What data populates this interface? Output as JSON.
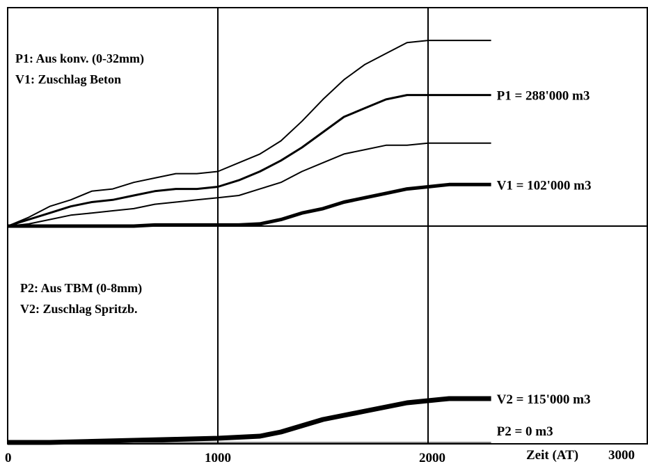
{
  "chart_data": {
    "type": "line",
    "x_axis": {
      "label": "Zeit (AT)",
      "ticks": [
        "0",
        "1000",
        "2000",
        "3000"
      ],
      "range": [
        0,
        3000
      ]
    },
    "panels": [
      {
        "annotation": [
          "P1: Aus konv. (0-32mm)",
          "V1: Zuschlag Beton"
        ],
        "series": [
          {
            "label": "",
            "x": [
              0,
              100,
              200,
              300,
              400,
              500,
              600,
              700,
              800,
              900,
              1000,
              1100,
              1200,
              1300,
              1400,
              1500,
              1600,
              1700,
              1800,
              1900,
              2000,
              2100,
              2200,
              2300
            ],
            "values": [
              0,
              0.04,
              0.09,
              0.12,
              0.16,
              0.17,
              0.2,
              0.22,
              0.24,
              0.24,
              0.25,
              0.29,
              0.33,
              0.39,
              0.48,
              0.58,
              0.67,
              0.74,
              0.79,
              0.84,
              0.85,
              0.85,
              0.85,
              0.85
            ],
            "stroke": 2
          },
          {
            "label": "P1 = 288'000 m3",
            "x": [
              0,
              100,
              200,
              300,
              400,
              500,
              600,
              700,
              800,
              900,
              1000,
              1100,
              1200,
              1300,
              1400,
              1500,
              1600,
              1700,
              1800,
              1900,
              2000,
              2100,
              2200,
              2300
            ],
            "values": [
              0,
              0.03,
              0.06,
              0.09,
              0.11,
              0.12,
              0.14,
              0.16,
              0.17,
              0.17,
              0.18,
              0.21,
              0.25,
              0.3,
              0.36,
              0.43,
              0.5,
              0.54,
              0.58,
              0.6,
              0.6,
              0.6,
              0.6,
              0.6
            ],
            "stroke": 3
          },
          {
            "label": "",
            "x": [
              0,
              100,
              200,
              300,
              400,
              500,
              600,
              700,
              800,
              900,
              1000,
              1100,
              1200,
              1300,
              1400,
              1500,
              1600,
              1700,
              1800,
              1900,
              2000,
              2100,
              2200,
              2300
            ],
            "values": [
              0,
              0.01,
              0.03,
              0.05,
              0.06,
              0.07,
              0.08,
              0.1,
              0.11,
              0.12,
              0.13,
              0.14,
              0.17,
              0.2,
              0.25,
              0.29,
              0.33,
              0.35,
              0.37,
              0.37,
              0.38,
              0.38,
              0.38,
              0.38
            ],
            "stroke": 2
          },
          {
            "label": "V1 = 102'000 m3",
            "x": [
              0,
              100,
              200,
              300,
              400,
              500,
              600,
              700,
              800,
              900,
              1000,
              1100,
              1200,
              1300,
              1400,
              1500,
              1600,
              1700,
              1800,
              1900,
              2000,
              2100,
              2200,
              2300
            ],
            "values": [
              0,
              0,
              0,
              0,
              0,
              0,
              0,
              0.005,
              0.005,
              0.005,
              0.005,
              0.005,
              0.01,
              0.03,
              0.06,
              0.08,
              0.11,
              0.13,
              0.15,
              0.17,
              0.18,
              0.19,
              0.19,
              0.19
            ],
            "stroke": 5
          }
        ]
      },
      {
        "annotation": [
          "P2: Aus TBM (0-8mm)",
          "V2: Zuschlag Spritzb."
        ],
        "series": [
          {
            "label": "V2 = 115'000 m3",
            "x": [
              0,
              200,
              400,
              600,
              800,
              1000,
              1100,
              1200,
              1300,
              1400,
              1500,
              1600,
              1700,
              1800,
              1900,
              2000,
              2100,
              2200,
              2300
            ],
            "values": [
              0,
              0,
              0.005,
              0.01,
              0.015,
              0.02,
              0.025,
              0.03,
              0.05,
              0.08,
              0.11,
              0.13,
              0.15,
              0.17,
              0.19,
              0.2,
              0.21,
              0.21,
              0.21
            ],
            "stroke": 7
          },
          {
            "label": "P2 = 0 m3",
            "x": [
              0,
              2300
            ],
            "values": [
              0,
              0
            ],
            "stroke": 1
          }
        ]
      }
    ],
    "grid": true,
    "vertical_gridlines_at": [
      1000,
      2000
    ]
  }
}
